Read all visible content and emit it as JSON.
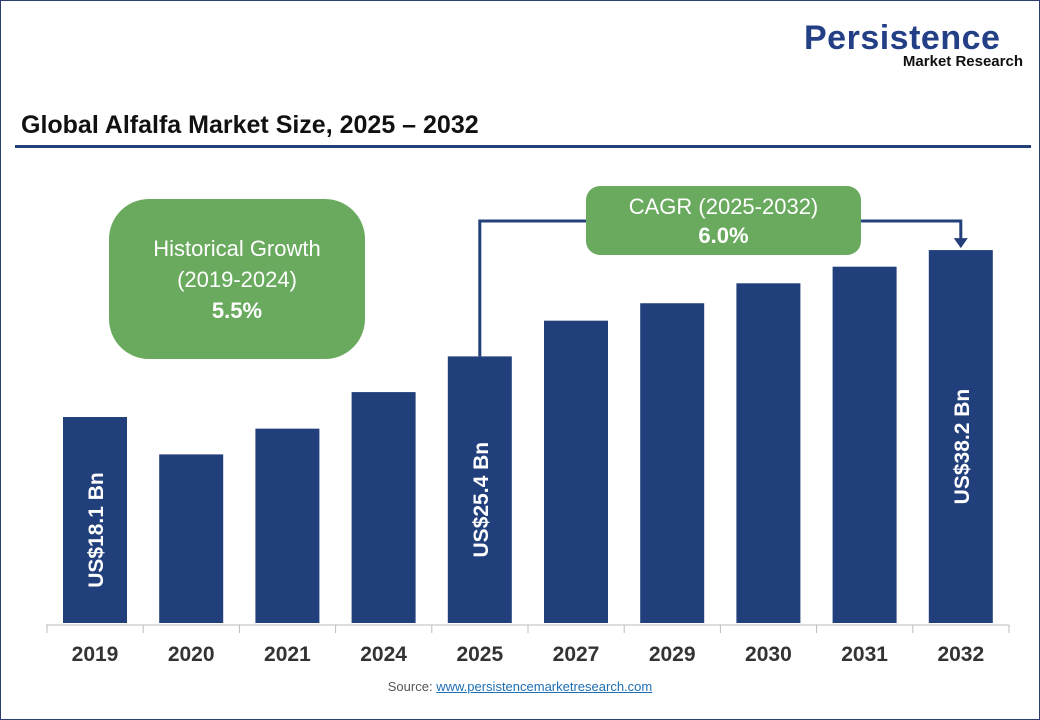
{
  "logo": {
    "line1": "Persistence",
    "line2": "Market Research"
  },
  "chart_data": {
    "type": "bar",
    "title": "Global Alfalfa Market Size, 2025 – 2032",
    "categories": [
      "2019",
      "2020",
      "2021",
      "2024",
      "2025",
      "2027",
      "2029",
      "2030",
      "2031",
      "2032"
    ],
    "values": [
      18.1,
      13.6,
      16.7,
      21.1,
      25.4,
      29.7,
      31.8,
      34.2,
      36.2,
      38.2
    ],
    "unit": "US$ Bn",
    "data_labels": {
      "2019": "US$18.1 Bn",
      "2025": "US$25.4 Bn",
      "2032": "US$38.2 Bn"
    },
    "bar_color": "#213f7b",
    "grid": false,
    "annotations": {
      "historical": {
        "label": "Historical Growth",
        "period": "(2019-2024)",
        "value": "5.5%"
      },
      "cagr": {
        "label": "CAGR (2025-2032)",
        "value": "6.0%"
      }
    },
    "annotation_color": "#6aaa5f"
  },
  "source": {
    "label": "Source:",
    "link": "www.persistencemarketresearch.com"
  }
}
